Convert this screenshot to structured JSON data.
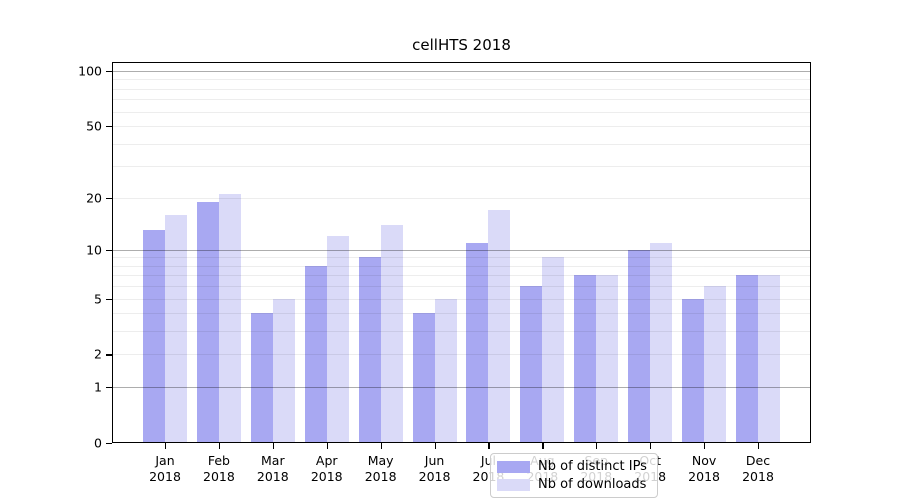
{
  "chart_data": {
    "type": "bar",
    "title": "cellHTS 2018",
    "categories": [
      "Jan",
      "Feb",
      "Mar",
      "Apr",
      "May",
      "Jun",
      "Jul",
      "Aug",
      "Sep",
      "Oct",
      "Nov",
      "Dec"
    ],
    "year_label": "2018",
    "series": [
      {
        "name": "Nb of distinct IPs",
        "color": "#a8a8f2",
        "values": [
          13,
          19,
          4,
          8,
          9,
          4,
          11,
          6,
          7,
          10,
          5,
          7
        ]
      },
      {
        "name": "Nb of downloads",
        "color": "#dadaf8",
        "values": [
          16,
          21,
          5,
          12,
          14,
          5,
          17,
          9,
          7,
          11,
          6,
          7
        ]
      }
    ],
    "xlabel": "",
    "ylabel": "",
    "y_ticks": [
      0,
      1,
      2,
      5,
      10,
      20,
      50,
      100
    ],
    "major_gridlines": [
      1,
      10,
      100
    ],
    "minor_gridlines": [
      2,
      3,
      4,
      5,
      6,
      7,
      8,
      9,
      20,
      30,
      40,
      50,
      60,
      70,
      80,
      90
    ],
    "scale": "log10(1+x)",
    "ylim": [
      0,
      111
    ],
    "grid": true,
    "legend_position": "bottom-center"
  }
}
